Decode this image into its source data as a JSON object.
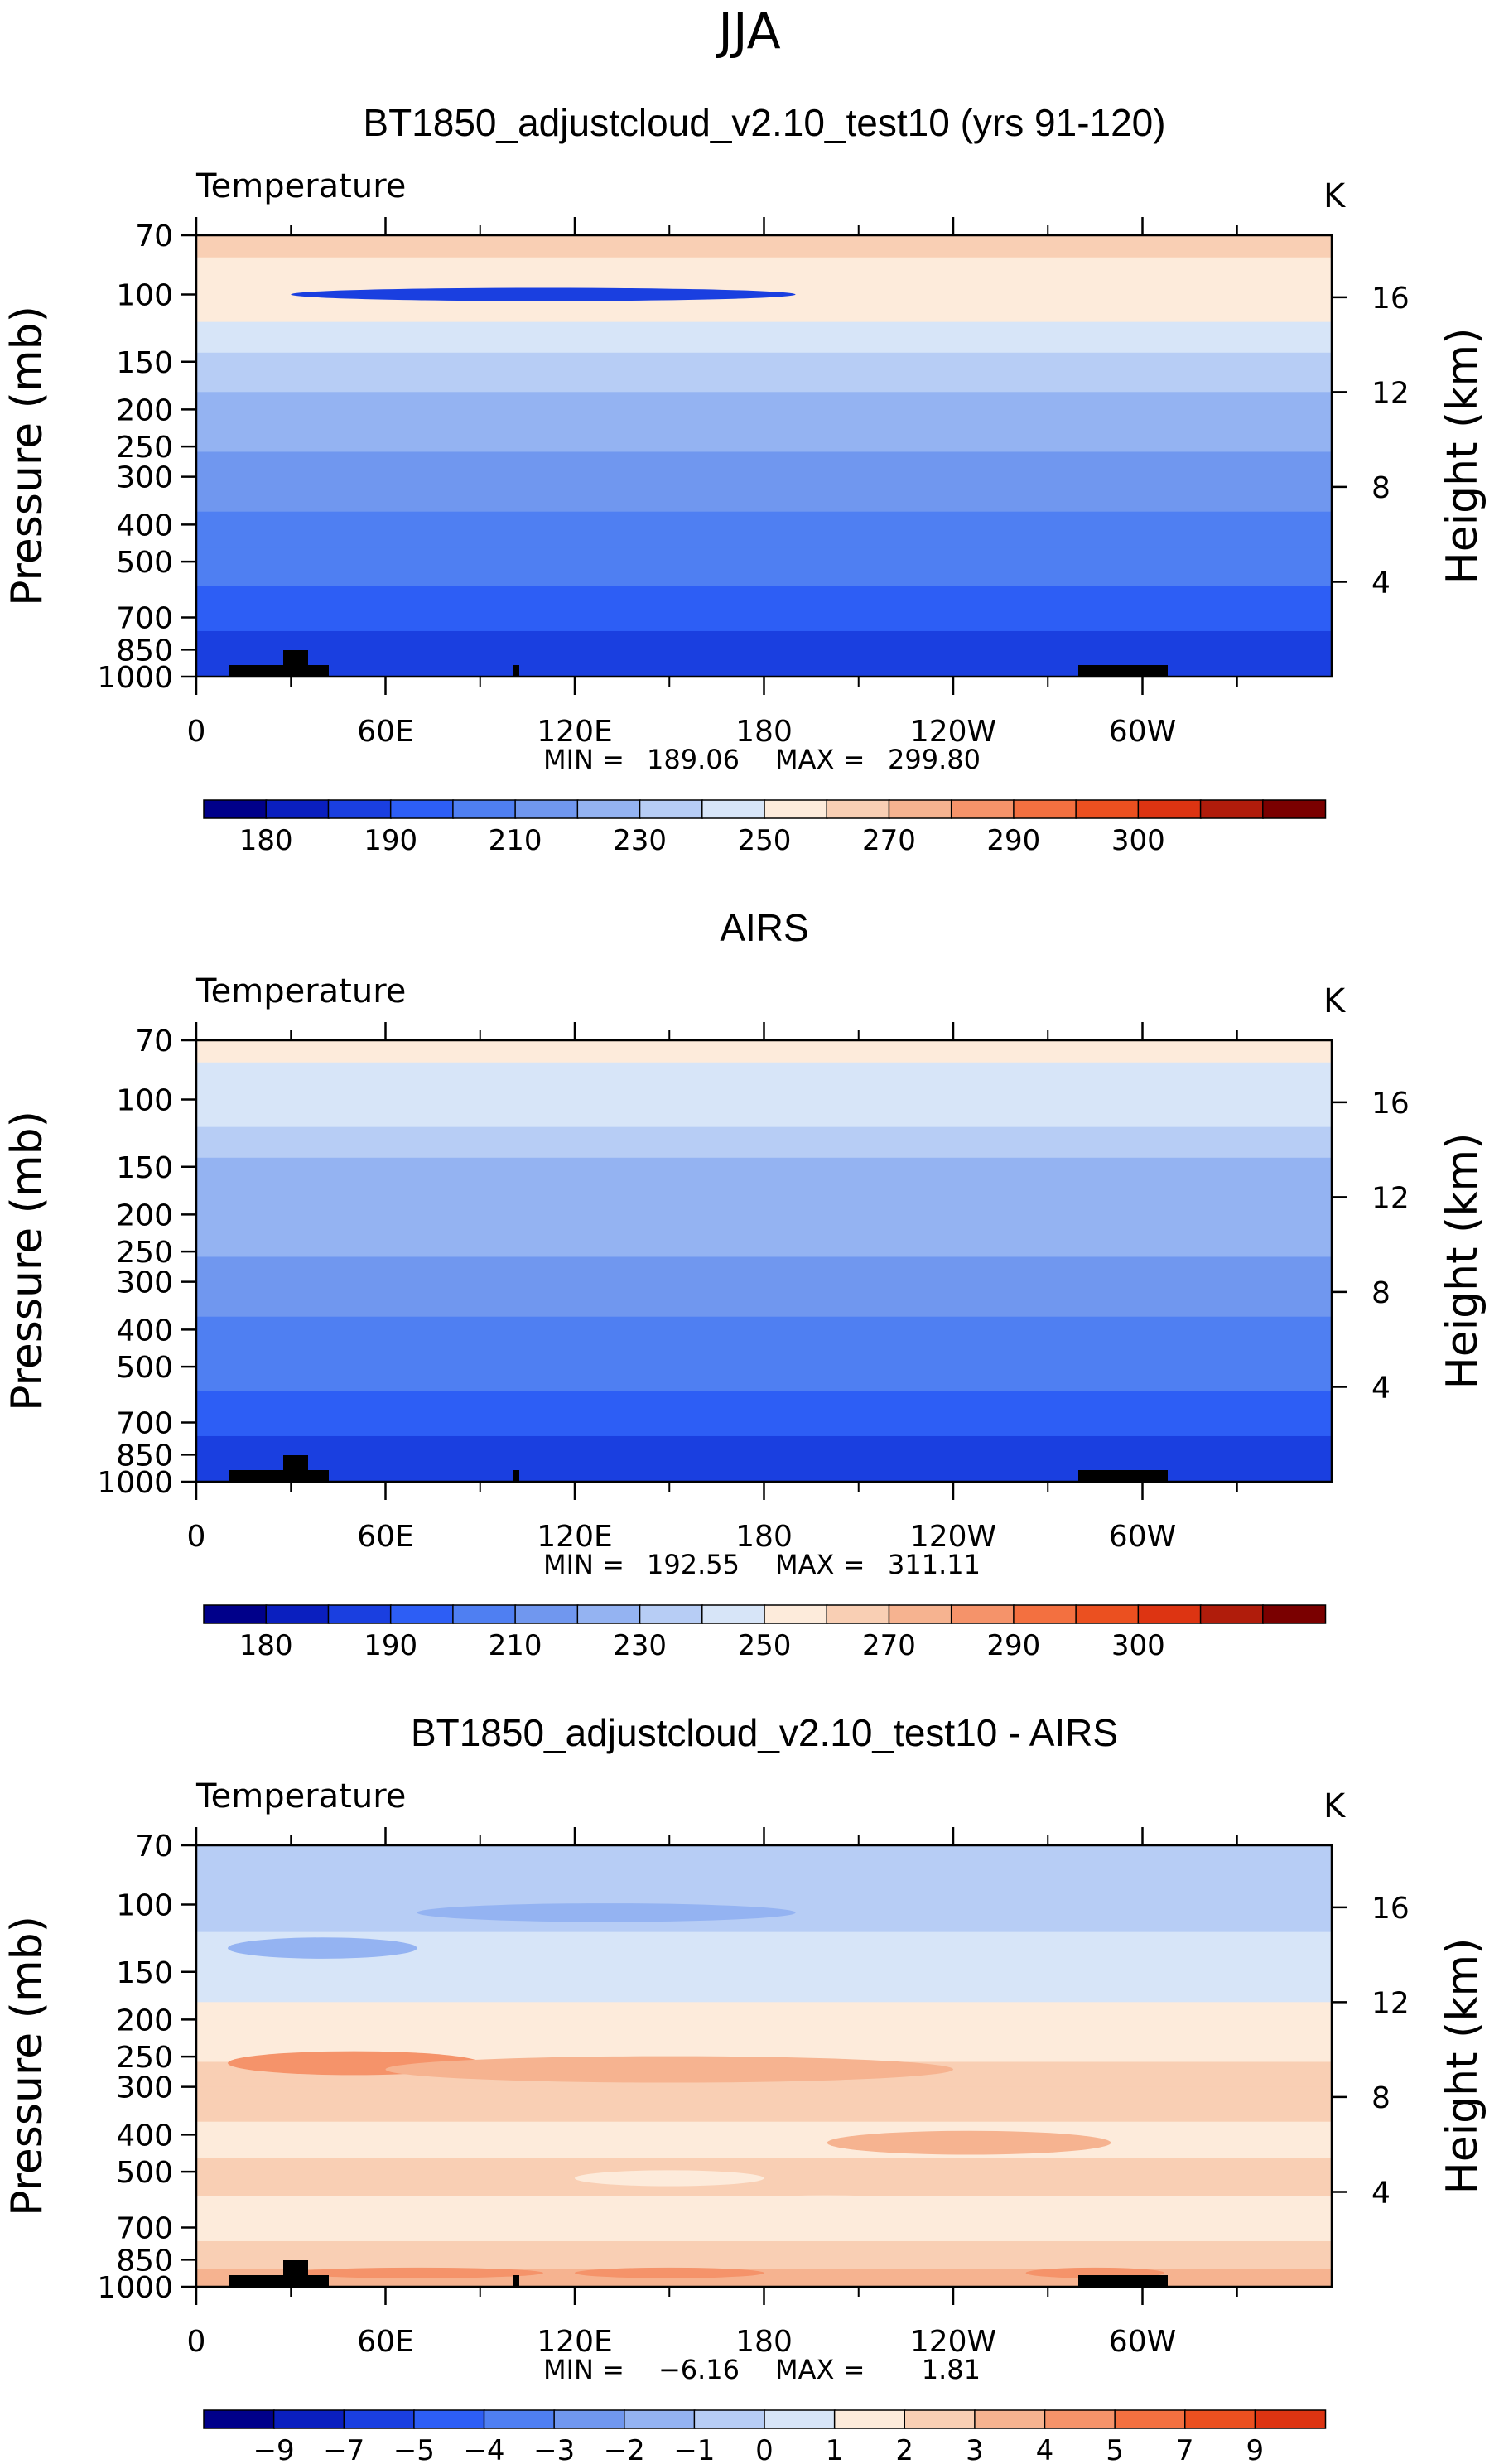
{
  "figure_title": "JJA",
  "chart_data": [
    {
      "type": "heatmap",
      "title": "BT1850_adjustcloud_v2.10_test10 (yrs 91-120)",
      "left_label": "Temperature",
      "right_label": "K",
      "ylabel": "Pressure (mb)",
      "ylabel_right": "Height (km)",
      "x_ticks": [
        "0",
        "60E",
        "120E",
        "180",
        "120W",
        "60W"
      ],
      "x_range": [
        0,
        360
      ],
      "y_ticks": [
        "70",
        "100",
        "150",
        "200",
        "250",
        "300",
        "400",
        "500",
        "700",
        "850",
        "1000"
      ],
      "y_range": [
        70,
        1000
      ],
      "height_ticks": [
        "16",
        "12",
        "8",
        "4"
      ],
      "min_label": "MIN =",
      "min_value": "189.06",
      "max_label": "MAX =",
      "max_value": "299.80",
      "colorbar_ticks": [
        "180",
        "190",
        "210",
        "230",
        "250",
        "270",
        "290",
        "300"
      ],
      "colorbar_colors": [
        "#00008a",
        "#0a1fbf",
        "#1a3fe0",
        "#2d5ef5",
        "#4f7ff2",
        "#7097ef",
        "#94b3f2",
        "#b7cdf5",
        "#d7e5f8",
        "#fdebdb",
        "#f9cfb4",
        "#f6b390",
        "#f5936a",
        "#f37040",
        "#eb5020",
        "#dd3412",
        "#b01c0b",
        "#7a0000"
      ],
      "band_levels": [
        7,
        6,
        5,
        4,
        3,
        3,
        2,
        2,
        1,
        1,
        0,
        -1,
        -1
      ],
      "anomalies": [
        {
          "lon": 110,
          "p": 100,
          "level": -1,
          "w": 80,
          "h": 5
        }
      ]
    },
    {
      "type": "heatmap",
      "title": "AIRS",
      "left_label": "Temperature",
      "right_label": "K",
      "ylabel": "Pressure (mb)",
      "ylabel_right": "Height (km)",
      "x_ticks": [
        "0",
        "60E",
        "120E",
        "180",
        "120W",
        "60W"
      ],
      "x_range": [
        0,
        360
      ],
      "y_ticks": [
        "70",
        "100",
        "150",
        "200",
        "250",
        "300",
        "400",
        "500",
        "700",
        "850",
        "1000"
      ],
      "y_range": [
        70,
        1000
      ],
      "height_ticks": [
        "16",
        "12",
        "8",
        "4"
      ],
      "min_label": "MIN =",
      "min_value": "192.55",
      "max_label": "MAX =",
      "max_value": "311.11",
      "colorbar_ticks": [
        "180",
        "190",
        "210",
        "230",
        "250",
        "270",
        "290",
        "300"
      ],
      "colorbar_colors": [
        "#00008a",
        "#0a1fbf",
        "#1a3fe0",
        "#2d5ef5",
        "#4f7ff2",
        "#7097ef",
        "#94b3f2",
        "#b7cdf5",
        "#d7e5f8",
        "#fdebdb",
        "#f9cfb4",
        "#f6b390",
        "#f5936a",
        "#f37040",
        "#eb5020",
        "#dd3412",
        "#b01c0b",
        "#7a0000"
      ],
      "band_levels": [
        6,
        5,
        4,
        3,
        3,
        3,
        2,
        2,
        1,
        1,
        0,
        -1,
        -1
      ],
      "anomalies": []
    },
    {
      "type": "heatmap",
      "title": "BT1850_adjustcloud_v2.10_test10 - AIRS",
      "left_label": "Temperature",
      "right_label": "K",
      "ylabel": "Pressure (mb)",
      "ylabel_right": "Height (km)",
      "x_ticks": [
        "0",
        "60E",
        "120E",
        "180",
        "120W",
        "60W"
      ],
      "x_range": [
        0,
        360
      ],
      "y_ticks": [
        "70",
        "100",
        "150",
        "200",
        "250",
        "300",
        "400",
        "500",
        "700",
        "850",
        "1000"
      ],
      "y_range": [
        70,
        1000
      ],
      "height_ticks": [
        "16",
        "12",
        "8",
        "4"
      ],
      "min_label": "MIN =",
      "min_value": "−6.16",
      "max_label": "MAX =",
      "max_value": "1.81",
      "colorbar_ticks": [
        "−9",
        "−7",
        "−5",
        "−4",
        "−3",
        "−2",
        "−1",
        "0",
        "1",
        "2",
        "3",
        "4",
        "5",
        "7",
        "9"
      ],
      "colorbar_colors": [
        "#00008a",
        "#0a1fbf",
        "#1a3fe0",
        "#2d5ef5",
        "#4f7ff2",
        "#7097ef",
        "#94b3f2",
        "#b7cdf5",
        "#d7e5f8",
        "#fdebdb",
        "#f9cfb4",
        "#f6b390",
        "#f5936a",
        "#f37040",
        "#eb5020",
        "#dd3412"
      ],
      "band_levels": [
        4,
        4,
        5,
        5,
        6,
        6,
        7,
        7,
        6,
        7,
        6,
        7,
        8
      ],
      "anomalies": [
        {
          "lon": 40,
          "p": 130,
          "level": 3,
          "w": 30,
          "h": 8
        },
        {
          "lon": 130,
          "p": 105,
          "level": 3,
          "w": 60,
          "h": 7
        },
        {
          "lon": 50,
          "p": 260,
          "level": 9,
          "w": 40,
          "h": 9
        },
        {
          "lon": 150,
          "p": 270,
          "level": 8,
          "w": 90,
          "h": 10
        },
        {
          "lon": 245,
          "p": 420,
          "level": 8,
          "w": 45,
          "h": 9
        },
        {
          "lon": 150,
          "p": 520,
          "level": 6,
          "w": 30,
          "h": 6
        },
        {
          "lon": 200,
          "p": 600,
          "level": 6,
          "w": 30,
          "h": 5
        },
        {
          "lon": 70,
          "p": 920,
          "level": 9,
          "w": 40,
          "h": 4
        },
        {
          "lon": 150,
          "p": 920,
          "level": 9,
          "w": 30,
          "h": 4
        },
        {
          "lon": 285,
          "p": 920,
          "level": 9,
          "w": 22,
          "h": 4
        }
      ]
    }
  ]
}
